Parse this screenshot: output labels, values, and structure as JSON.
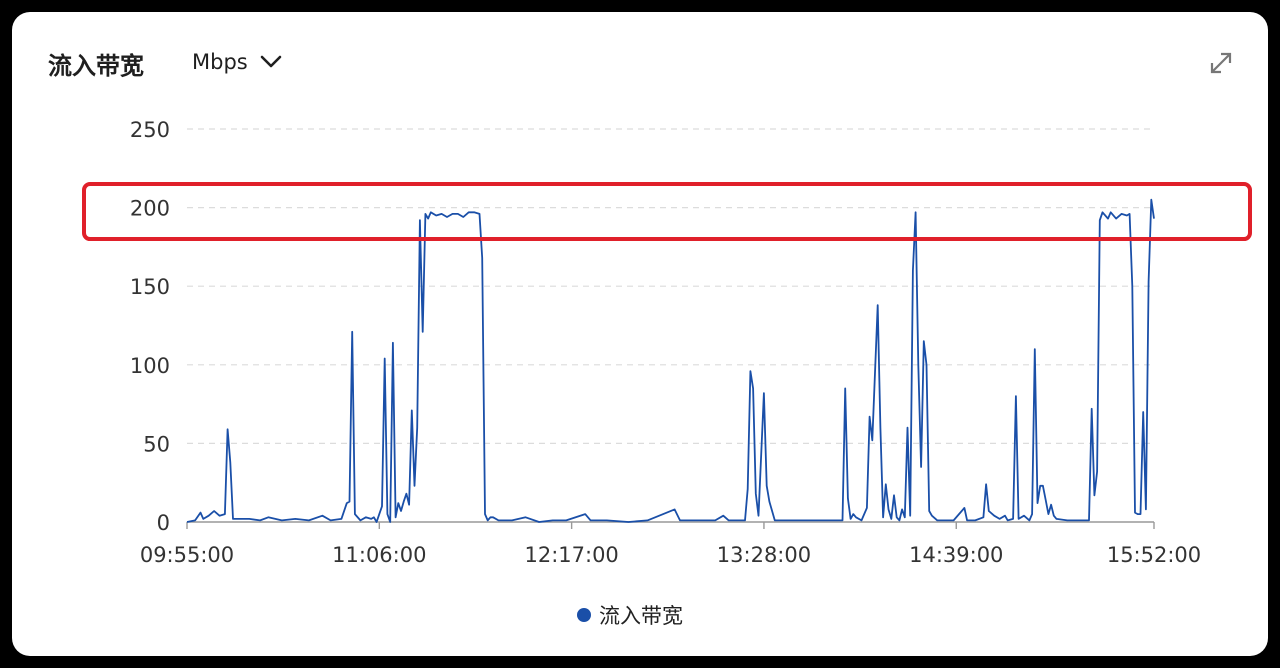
{
  "header": {
    "title": "流入带宽",
    "unit": "Mbps",
    "expand_icon": "expand-arrows-icon",
    "dropdown_icon": "chevron-down-icon"
  },
  "chart_data": {
    "type": "line",
    "ylim": [
      0,
      250
    ],
    "y_ticks": [
      "0",
      "50",
      "100",
      "150",
      "200",
      "250"
    ],
    "x_ticks": [
      "09:55:00",
      "11:06:00",
      "12:17:00",
      "13:28:00",
      "14:39:00",
      "15:52:00"
    ],
    "x_range": [
      "09:55:00",
      "15:52:00"
    ],
    "grid": true,
    "legend_position": "bottom",
    "highlight_band": [
      180,
      215
    ],
    "highlight_color": "#e0202a",
    "series": [
      {
        "name": "流入带宽",
        "color": "#1a4fa8",
        "points": [
          [
            "09:55:00",
            0
          ],
          [
            "09:58:00",
            1
          ],
          [
            "10:00:00",
            6
          ],
          [
            "10:01:00",
            2
          ],
          [
            "10:03:00",
            4
          ],
          [
            "10:05:00",
            7
          ],
          [
            "10:07:00",
            4
          ],
          [
            "10:09:00",
            5
          ],
          [
            "10:10:00",
            59
          ],
          [
            "10:11:00",
            38
          ],
          [
            "10:12:00",
            2
          ],
          [
            "10:18:00",
            2
          ],
          [
            "10:22:00",
            1
          ],
          [
            "10:25:00",
            3
          ],
          [
            "10:30:00",
            1
          ],
          [
            "10:35:00",
            2
          ],
          [
            "10:40:00",
            1
          ],
          [
            "10:45:00",
            4
          ],
          [
            "10:48:00",
            1
          ],
          [
            "10:52:00",
            2
          ],
          [
            "10:54:00",
            12
          ],
          [
            "10:55:00",
            13
          ],
          [
            "10:56:00",
            121
          ],
          [
            "10:57:00",
            5
          ],
          [
            "10:59:00",
            1
          ],
          [
            "11:01:00",
            3
          ],
          [
            "11:03:00",
            2
          ],
          [
            "11:04:00",
            3
          ],
          [
            "11:05:00",
            0
          ],
          [
            "11:06:00",
            5
          ],
          [
            "11:07:00",
            10
          ],
          [
            "11:08:00",
            104
          ],
          [
            "11:09:00",
            5
          ],
          [
            "11:10:00",
            0
          ],
          [
            "11:11:00",
            114
          ],
          [
            "11:12:00",
            3
          ],
          [
            "11:13:00",
            12
          ],
          [
            "11:14:00",
            7
          ],
          [
            "11:15:00",
            13
          ],
          [
            "11:16:00",
            18
          ],
          [
            "11:17:00",
            11
          ],
          [
            "11:18:00",
            71
          ],
          [
            "11:19:00",
            23
          ],
          [
            "11:20:00",
            60
          ],
          [
            "11:21:00",
            192
          ],
          [
            "11:22:00",
            121
          ],
          [
            "11:23:00",
            196
          ],
          [
            "11:24:00",
            193
          ],
          [
            "11:25:00",
            197
          ],
          [
            "11:27:00",
            195
          ],
          [
            "11:29:00",
            196
          ],
          [
            "11:31:00",
            194
          ],
          [
            "11:33:00",
            196
          ],
          [
            "11:35:00",
            196
          ],
          [
            "11:37:00",
            194
          ],
          [
            "11:39:00",
            197
          ],
          [
            "11:41:00",
            197
          ],
          [
            "11:43:00",
            196
          ],
          [
            "11:44:00",
            168
          ],
          [
            "11:45:00",
            5
          ],
          [
            "11:46:00",
            1
          ],
          [
            "11:47:00",
            3
          ],
          [
            "11:48:00",
            3
          ],
          [
            "11:50:00",
            1
          ],
          [
            "11:55:00",
            1
          ],
          [
            "12:00:00",
            3
          ],
          [
            "12:05:00",
            0
          ],
          [
            "12:10:00",
            1
          ],
          [
            "12:12:00",
            1
          ],
          [
            "12:15:00",
            1
          ],
          [
            "12:22:00",
            5
          ],
          [
            "12:24:00",
            1
          ],
          [
            "12:30:00",
            1
          ],
          [
            "12:45:00",
            1
          ],
          [
            "12:38:00",
            0
          ],
          [
            "12:55:00",
            8
          ],
          [
            "12:57:00",
            1
          ],
          [
            "13:10:00",
            1
          ],
          [
            "13:13:00",
            4
          ],
          [
            "13:15:00",
            1
          ],
          [
            "13:21:00",
            1
          ],
          [
            "13:22:00",
            21
          ],
          [
            "13:23:00",
            96
          ],
          [
            "13:24:00",
            85
          ],
          [
            "13:25:00",
            18
          ],
          [
            "13:26:00",
            4
          ],
          [
            "13:28:00",
            82
          ],
          [
            "13:29:00",
            23
          ],
          [
            "13:30:00",
            13
          ],
          [
            "13:32:00",
            1
          ],
          [
            "13:40:00",
            1
          ],
          [
            "13:50:00",
            1
          ],
          [
            "13:57:00",
            1
          ],
          [
            "13:58:00",
            85
          ],
          [
            "13:59:00",
            15
          ],
          [
            "14:00:00",
            2
          ],
          [
            "14:01:00",
            5
          ],
          [
            "14:02:00",
            3
          ],
          [
            "14:04:00",
            1
          ],
          [
            "14:06:00",
            9
          ],
          [
            "14:07:00",
            67
          ],
          [
            "14:08:00",
            52
          ],
          [
            "14:10:00",
            138
          ],
          [
            "14:11:00",
            60
          ],
          [
            "14:12:00",
            3
          ],
          [
            "14:13:00",
            24
          ],
          [
            "14:14:00",
            8
          ],
          [
            "14:15:00",
            2
          ],
          [
            "14:16:00",
            17
          ],
          [
            "14:17:00",
            3
          ],
          [
            "14:18:00",
            1
          ],
          [
            "14:19:00",
            8
          ],
          [
            "14:20:00",
            3
          ],
          [
            "14:21:00",
            60
          ],
          [
            "14:22:00",
            4
          ],
          [
            "14:23:00",
            160
          ],
          [
            "14:24:00",
            197
          ],
          [
            "14:25:00",
            100
          ],
          [
            "14:26:00",
            35
          ],
          [
            "14:27:00",
            115
          ],
          [
            "14:28:00",
            100
          ],
          [
            "14:29:00",
            7
          ],
          [
            "14:30:00",
            4
          ],
          [
            "14:32:00",
            1
          ],
          [
            "14:38:00",
            1
          ],
          [
            "14:42:00",
            9
          ],
          [
            "14:43:00",
            1
          ],
          [
            "14:46:00",
            1
          ],
          [
            "14:49:00",
            3
          ],
          [
            "14:50:00",
            24
          ],
          [
            "14:51:00",
            7
          ],
          [
            "14:53:00",
            4
          ],
          [
            "14:55:00",
            2
          ],
          [
            "14:57:00",
            4
          ],
          [
            "14:58:00",
            1
          ],
          [
            "15:00:00",
            2
          ],
          [
            "15:01:00",
            80
          ],
          [
            "15:02:00",
            2
          ],
          [
            "15:04:00",
            4
          ],
          [
            "15:06:00",
            1
          ],
          [
            "15:07:00",
            5
          ],
          [
            "15:08:00",
            110
          ],
          [
            "15:09:00",
            12
          ],
          [
            "15:10:00",
            23
          ],
          [
            "15:11:00",
            23
          ],
          [
            "15:12:00",
            14
          ],
          [
            "15:13:00",
            5
          ],
          [
            "15:14:00",
            11
          ],
          [
            "15:15:00",
            4
          ],
          [
            "15:16:00",
            2
          ],
          [
            "15:20:00",
            1
          ],
          [
            "15:24:00",
            1
          ],
          [
            "15:28:00",
            1
          ],
          [
            "15:29:00",
            72
          ],
          [
            "15:30:00",
            17
          ],
          [
            "15:31:00",
            32
          ],
          [
            "15:32:00",
            192
          ],
          [
            "15:33:00",
            197
          ],
          [
            "15:35:00",
            193
          ],
          [
            "15:36:00",
            197
          ],
          [
            "15:38:00",
            193
          ],
          [
            "15:40:00",
            196
          ],
          [
            "15:42:00",
            195
          ],
          [
            "15:43:00",
            196
          ],
          [
            "15:44:00",
            150
          ],
          [
            "15:45:00",
            6
          ],
          [
            "15:46:00",
            5
          ],
          [
            "15:47:00",
            5
          ],
          [
            "15:48:00",
            70
          ],
          [
            "15:49:00",
            8
          ],
          [
            "15:50:00",
            153
          ],
          [
            "15:51:00",
            205
          ],
          [
            "15:52:00",
            193
          ]
        ]
      }
    ]
  }
}
